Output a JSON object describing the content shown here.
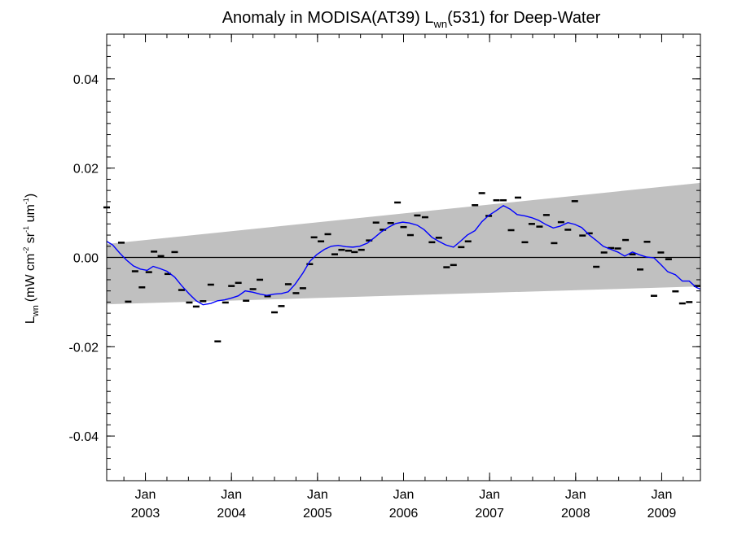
{
  "chart_data": {
    "type": "line",
    "title": {
      "prefix": "Anomaly in MODISA(AT39) L",
      "sub": "wn",
      "suffix": "(531) for Deep-Water"
    },
    "ylabel": {
      "main": "L",
      "main_sub": "wn",
      "units": "(mW cm",
      "exp1": "-2",
      "mid": " sr",
      "exp2": "-1",
      "end": " um",
      "exp3": "-1",
      "close": ")"
    },
    "xlim": [
      2002.55,
      2009.45
    ],
    "ylim": [
      -0.05,
      0.05
    ],
    "y_ticks": [
      -0.04,
      -0.02,
      0.0,
      0.02,
      0.04
    ],
    "y_tick_labels": [
      "-0.04",
      "-0.02",
      "0.00",
      "0.02",
      "0.04"
    ],
    "x_ticks": [
      {
        "value": 2003.0,
        "month": "Jan",
        "year": "2003"
      },
      {
        "value": 2004.0,
        "month": "Jan",
        "year": "2004"
      },
      {
        "value": 2005.0,
        "month": "Jan",
        "year": "2005"
      },
      {
        "value": 2006.0,
        "month": "Jan",
        "year": "2006"
      },
      {
        "value": 2007.0,
        "month": "Jan",
        "year": "2007"
      },
      {
        "value": 2008.0,
        "month": "Jan",
        "year": "2008"
      },
      {
        "value": 2009.0,
        "month": "Jan",
        "year": "2009"
      }
    ],
    "zero_line": 0.0,
    "band": {
      "color": "#c0c0c0",
      "upper": [
        [
          2002.55,
          0.003
        ],
        [
          2009.45,
          0.0167
        ]
      ],
      "lower": [
        [
          2002.55,
          -0.0105
        ],
        [
          2009.45,
          -0.0065
        ]
      ]
    },
    "series": [
      {
        "kind": "monthly_markers",
        "color": "#000000",
        "points": [
          [
            2002.55,
            0.0112
          ],
          [
            2002.72,
            0.0033
          ],
          [
            2002.8,
            -0.0099
          ],
          [
            2002.88,
            -0.0031
          ],
          [
            2002.96,
            -0.0067
          ],
          [
            2003.04,
            -0.0033
          ],
          [
            2003.1,
            0.0013
          ],
          [
            2003.18,
            0.0003
          ],
          [
            2003.26,
            -0.0037
          ],
          [
            2003.34,
            0.0012
          ],
          [
            2003.42,
            -0.0073
          ],
          [
            2003.51,
            -0.0101
          ],
          [
            2003.59,
            -0.011
          ],
          [
            2003.67,
            -0.0098
          ],
          [
            2003.76,
            -0.0061
          ],
          [
            2003.84,
            -0.0188
          ],
          [
            2003.93,
            -0.0101
          ],
          [
            2004.0,
            -0.0064
          ],
          [
            2004.08,
            -0.0057
          ],
          [
            2004.17,
            -0.0097
          ],
          [
            2004.25,
            -0.0071
          ],
          [
            2004.33,
            -0.005
          ],
          [
            2004.42,
            -0.0087
          ],
          [
            2004.5,
            -0.0123
          ],
          [
            2004.58,
            -0.0109
          ],
          [
            2004.66,
            -0.006
          ],
          [
            2004.75,
            -0.008
          ],
          [
            2004.83,
            -0.0069
          ],
          [
            2004.91,
            -0.0015
          ],
          [
            2004.96,
            0.0045
          ],
          [
            2005.04,
            0.0036
          ],
          [
            2005.12,
            0.0052
          ],
          [
            2005.2,
            0.0007
          ],
          [
            2005.28,
            0.0017
          ],
          [
            2005.36,
            0.0015
          ],
          [
            2005.43,
            0.0012
          ],
          [
            2005.51,
            0.0017
          ],
          [
            2005.6,
            0.0038
          ],
          [
            2005.68,
            0.0078
          ],
          [
            2005.76,
            0.0062
          ],
          [
            2005.85,
            0.0077
          ],
          [
            2005.93,
            0.0123
          ],
          [
            2006.0,
            0.0068
          ],
          [
            2006.08,
            0.005
          ],
          [
            2006.16,
            0.0094
          ],
          [
            2006.25,
            0.009
          ],
          [
            2006.33,
            0.0034
          ],
          [
            2006.41,
            0.0044
          ],
          [
            2006.5,
            -0.0022
          ],
          [
            2006.58,
            -0.0017
          ],
          [
            2006.67,
            0.0023
          ],
          [
            2006.75,
            0.0036
          ],
          [
            2006.83,
            0.0117
          ],
          [
            2006.91,
            0.0144
          ],
          [
            2006.99,
            0.0093
          ],
          [
            2007.08,
            0.0128
          ],
          [
            2007.16,
            0.0128
          ],
          [
            2007.25,
            0.0061
          ],
          [
            2007.33,
            0.0134
          ],
          [
            2007.41,
            0.0034
          ],
          [
            2007.49,
            0.0075
          ],
          [
            2007.58,
            0.0069
          ],
          [
            2007.66,
            0.0095
          ],
          [
            2007.75,
            0.0032
          ],
          [
            2007.83,
            0.0079
          ],
          [
            2007.91,
            0.0062
          ],
          [
            2007.99,
            0.0126
          ],
          [
            2008.08,
            0.0049
          ],
          [
            2008.16,
            0.0054
          ],
          [
            2008.24,
            -0.0021
          ],
          [
            2008.33,
            0.0011
          ],
          [
            2008.41,
            0.0021
          ],
          [
            2008.49,
            0.002
          ],
          [
            2008.58,
            0.0039
          ],
          [
            2008.66,
            0.0007
          ],
          [
            2008.75,
            -0.0027
          ],
          [
            2008.83,
            0.0035
          ],
          [
            2008.91,
            -0.0086
          ],
          [
            2008.99,
            0.0011
          ],
          [
            2009.08,
            -0.0004
          ],
          [
            2009.16,
            -0.0076
          ],
          [
            2009.24,
            -0.0103
          ],
          [
            2009.32,
            -0.01
          ],
          [
            2009.41,
            -0.0064
          ]
        ]
      },
      {
        "kind": "smoothed_line",
        "color": "#0000ff",
        "points": [
          [
            2002.55,
            0.0036
          ],
          [
            2002.62,
            0.0028
          ],
          [
            2002.7,
            0.001
          ],
          [
            2002.78,
            -0.0006
          ],
          [
            2002.86,
            -0.0019
          ],
          [
            2002.94,
            -0.0026
          ],
          [
            2003.02,
            -0.0029
          ],
          [
            2003.09,
            -0.002
          ],
          [
            2003.17,
            -0.0025
          ],
          [
            2003.25,
            -0.0031
          ],
          [
            2003.34,
            -0.0044
          ],
          [
            2003.42,
            -0.0063
          ],
          [
            2003.51,
            -0.0082
          ],
          [
            2003.59,
            -0.0097
          ],
          [
            2003.67,
            -0.0106
          ],
          [
            2003.76,
            -0.0103
          ],
          [
            2003.84,
            -0.0097
          ],
          [
            2003.92,
            -0.0095
          ],
          [
            2004.0,
            -0.0091
          ],
          [
            2004.08,
            -0.0086
          ],
          [
            2004.16,
            -0.0075
          ],
          [
            2004.25,
            -0.0078
          ],
          [
            2004.33,
            -0.0082
          ],
          [
            2004.41,
            -0.0085
          ],
          [
            2004.5,
            -0.0082
          ],
          [
            2004.58,
            -0.0081
          ],
          [
            2004.66,
            -0.0077
          ],
          [
            2004.74,
            -0.006
          ],
          [
            2004.83,
            -0.0035
          ],
          [
            2004.91,
            -0.0009
          ],
          [
            2004.99,
            0.0006
          ],
          [
            2005.08,
            0.0018
          ],
          [
            2005.16,
            0.0025
          ],
          [
            2005.24,
            0.0027
          ],
          [
            2005.33,
            0.0024
          ],
          [
            2005.41,
            0.0023
          ],
          [
            2005.49,
            0.0025
          ],
          [
            2005.58,
            0.0032
          ],
          [
            2005.66,
            0.0044
          ],
          [
            2005.74,
            0.0057
          ],
          [
            2005.83,
            0.0068
          ],
          [
            2005.91,
            0.0076
          ],
          [
            2005.99,
            0.0079
          ],
          [
            2006.07,
            0.0077
          ],
          [
            2006.16,
            0.0072
          ],
          [
            2006.24,
            0.0062
          ],
          [
            2006.33,
            0.0045
          ],
          [
            2006.41,
            0.0036
          ],
          [
            2006.49,
            0.0028
          ],
          [
            2006.58,
            0.0023
          ],
          [
            2006.66,
            0.0036
          ],
          [
            2006.74,
            0.005
          ],
          [
            2006.83,
            0.006
          ],
          [
            2006.91,
            0.008
          ],
          [
            2006.99,
            0.0094
          ],
          [
            2007.07,
            0.0104
          ],
          [
            2007.16,
            0.0116
          ],
          [
            2007.24,
            0.0108
          ],
          [
            2007.32,
            0.0096
          ],
          [
            2007.41,
            0.0093
          ],
          [
            2007.49,
            0.0089
          ],
          [
            2007.57,
            0.0083
          ],
          [
            2007.66,
            0.0073
          ],
          [
            2007.74,
            0.0066
          ],
          [
            2007.82,
            0.007
          ],
          [
            2007.91,
            0.0078
          ],
          [
            2007.99,
            0.0074
          ],
          [
            2008.07,
            0.0067
          ],
          [
            2008.16,
            0.005
          ],
          [
            2008.24,
            0.0038
          ],
          [
            2008.32,
            0.0025
          ],
          [
            2008.41,
            0.0018
          ],
          [
            2008.49,
            0.0012
          ],
          [
            2008.57,
            0.0003
          ],
          [
            2008.66,
            0.0012
          ],
          [
            2008.74,
            0.0006
          ],
          [
            2008.82,
            0.0001
          ],
          [
            2008.91,
            -0.0001
          ],
          [
            2008.99,
            -0.0016
          ],
          [
            2009.07,
            -0.0032
          ],
          [
            2009.16,
            -0.0039
          ],
          [
            2009.24,
            -0.0053
          ],
          [
            2009.32,
            -0.0053
          ],
          [
            2009.4,
            -0.0067
          ],
          [
            2009.45,
            -0.0071
          ]
        ]
      }
    ]
  }
}
